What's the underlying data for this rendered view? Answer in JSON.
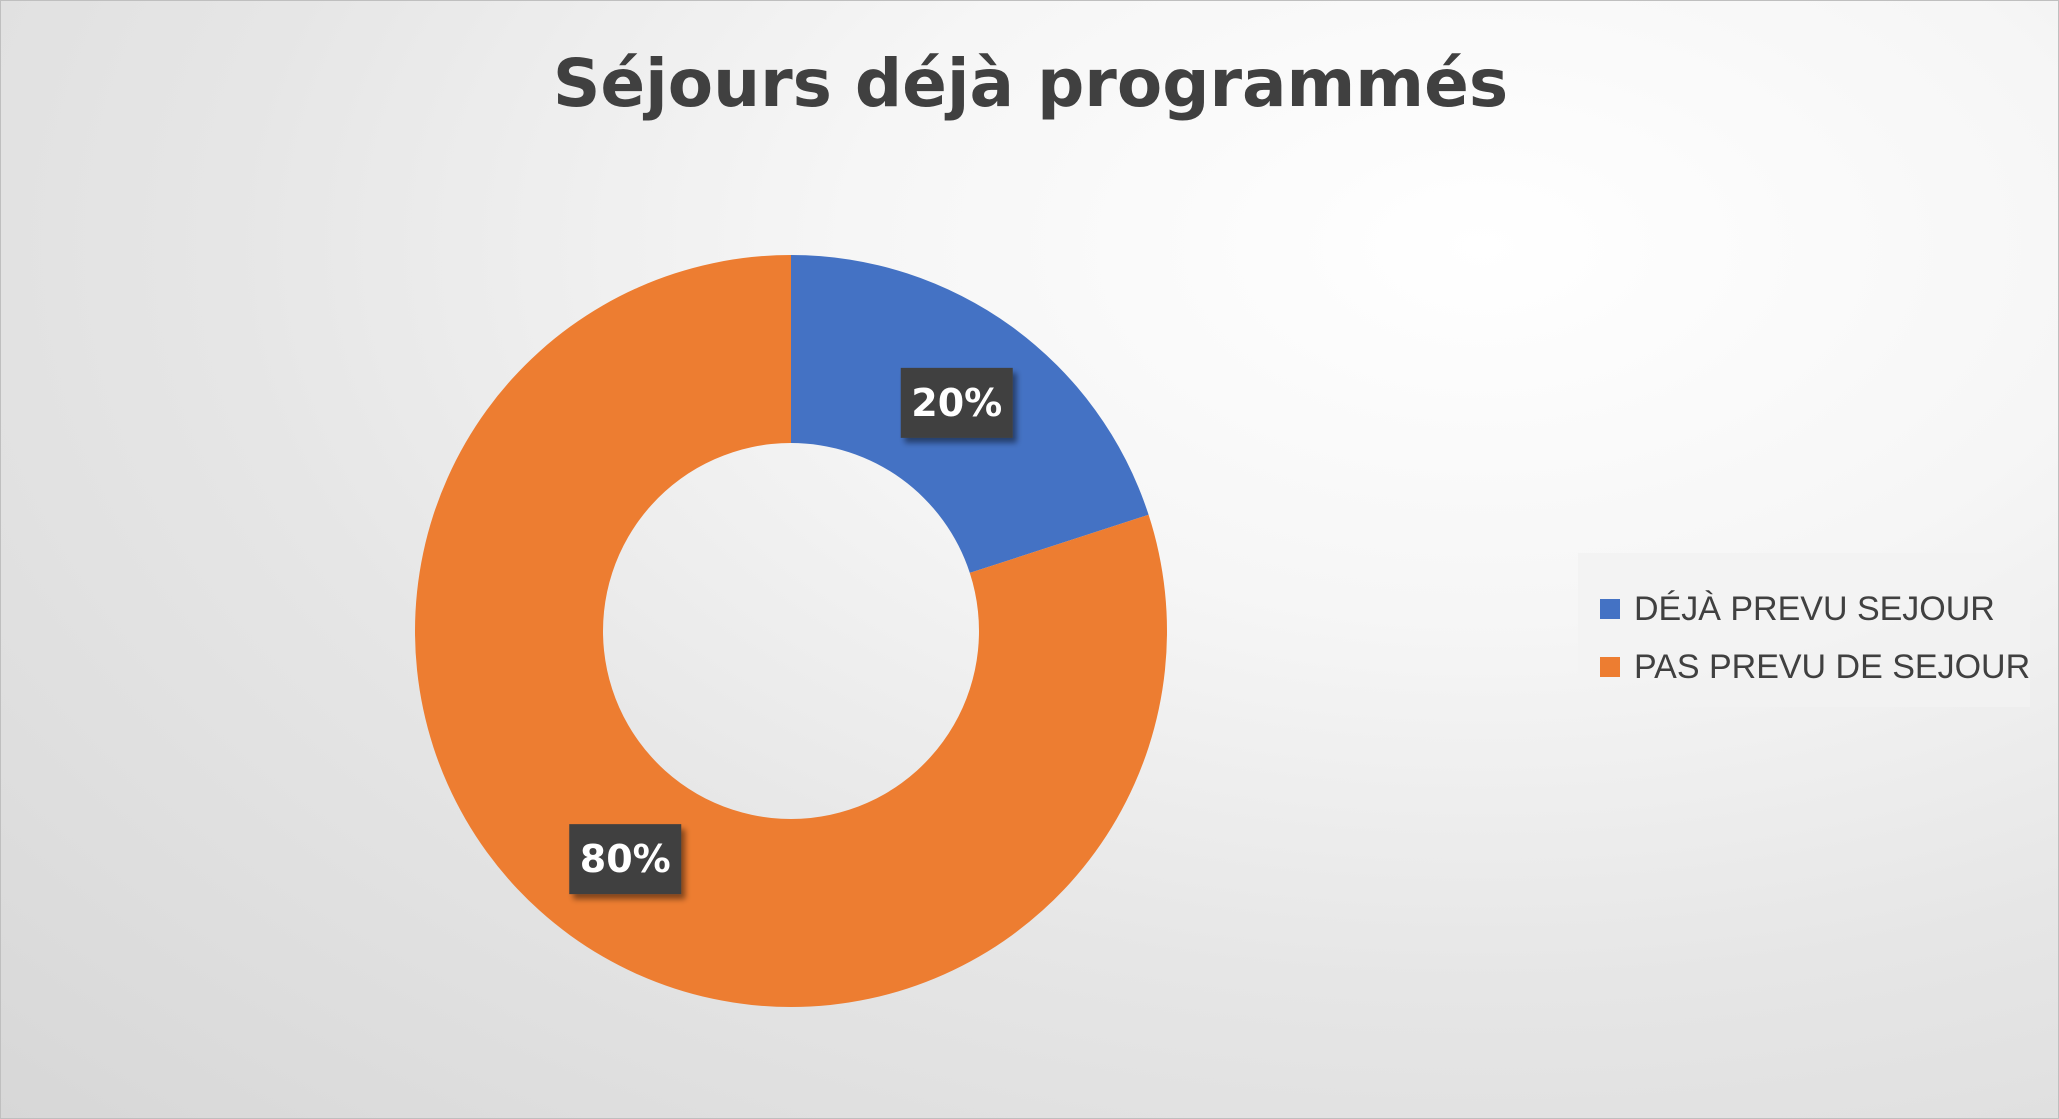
{
  "chart_data": {
    "type": "pie",
    "style": "doughnut",
    "title": "Séjours déjà programmés",
    "categories": [
      "DÉJÀ PREVU SEJOUR",
      "PAS PREVU DE SEJOUR"
    ],
    "values": [
      20,
      80
    ],
    "data_labels": [
      "20%",
      "80%"
    ],
    "colors": [
      "#4472C4",
      "#ED7D31"
    ],
    "legend_position": "right",
    "label_background": "#404040"
  }
}
